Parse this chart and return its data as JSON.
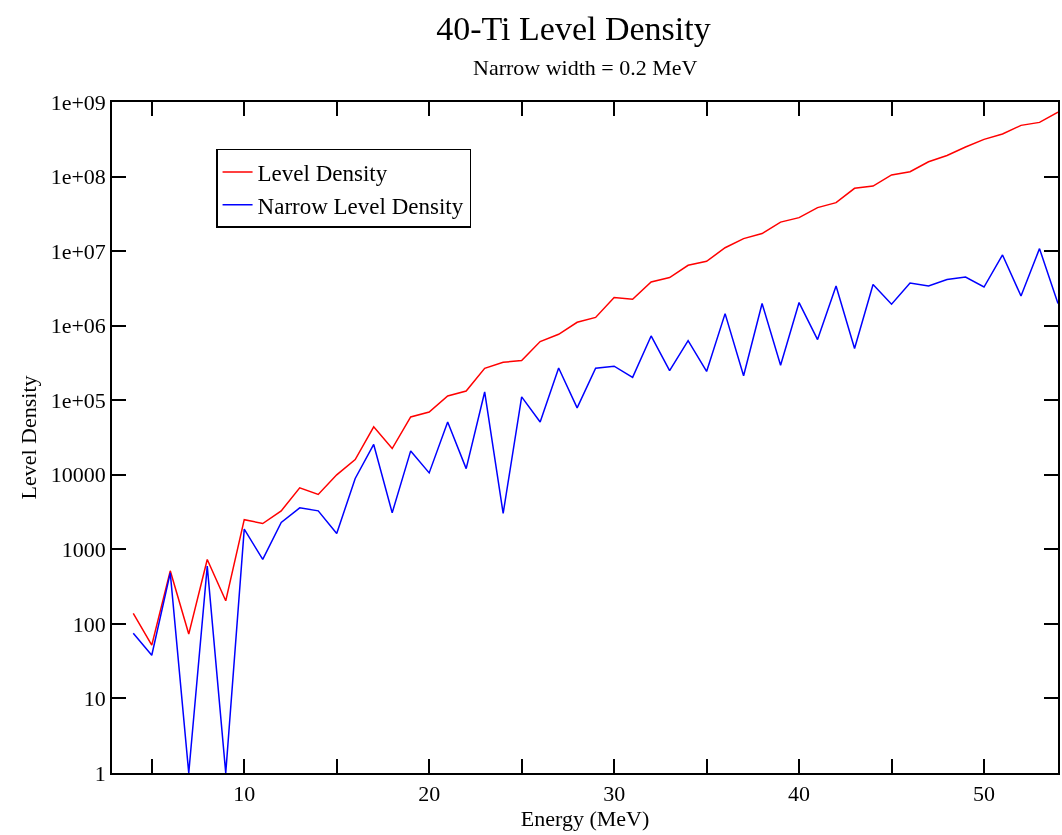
{
  "chart_data": {
    "type": "line",
    "title": "40-Ti Level Density",
    "subtitle": "Narrow width = 0.2 MeV",
    "xlabel": "Energy (MeV)",
    "ylabel": "Level Density",
    "x": [
      4,
      5,
      6,
      7,
      8,
      9,
      10,
      11,
      12,
      13,
      14,
      15,
      16,
      17,
      18,
      19,
      20,
      21,
      22,
      23,
      24,
      25,
      26,
      27,
      28,
      29,
      30,
      31,
      32,
      33,
      34,
      35,
      36,
      37,
      38,
      39,
      40,
      41,
      42,
      43,
      44,
      45,
      46,
      47,
      48,
      49,
      50,
      51,
      52,
      53,
      54
    ],
    "series": [
      {
        "name": "Level Density",
        "color": "#ff0000",
        "values": [
          138,
          52,
          515,
          73,
          730,
          204,
          2500,
          2220,
          3280,
          6680,
          5450,
          9980,
          16000,
          43900,
          22500,
          59700,
          69600,
          114000,
          133000,
          268000,
          323000,
          340000,
          612000,
          767000,
          1110000,
          1290000,
          2380000,
          2260000,
          3850000,
          4420000,
          6450000,
          7300000,
          11100000,
          14700000,
          17200000,
          24500000,
          28100000,
          38300000,
          44700000,
          69500000,
          74600000,
          105000000,
          116000000,
          158000000,
          192000000,
          249000000,
          315000000,
          372000000,
          486000000,
          533000000,
          732000000
        ]
      },
      {
        "name": "Narrow Level Density",
        "color": "#0000ff",
        "values": [
          75,
          38,
          484,
          1,
          596,
          1,
          1870,
          733,
          2290,
          3600,
          3280,
          1630,
          8920,
          25500,
          3090,
          20900,
          10600,
          51000,
          12100,
          129000,
          3030,
          111000,
          51000,
          271000,
          78900,
          268000,
          286000,
          203000,
          728000,
          250000,
          631000,
          243000,
          1450000,
          213000,
          1980000,
          294000,
          2040000,
          651000,
          3400000,
          493000,
          3560000,
          1940000,
          3740000,
          3400000,
          4150000,
          4500000,
          3300000,
          8870000,
          2500000,
          10800000,
          1980000
        ]
      }
    ],
    "log": "y",
    "xlim": [
      2.85,
      54
    ],
    "ylim": [
      1,
      1000000000
    ],
    "xticks": [
      {
        "value": 5,
        "label": null
      },
      10,
      {
        "value": 15,
        "label": null
      },
      20,
      {
        "value": 25,
        "label": null
      },
      30,
      {
        "value": 35,
        "label": null
      },
      40,
      {
        "value": 45,
        "label": null
      },
      50
    ],
    "yticks": [
      1,
      10,
      100,
      1000,
      10000,
      {
        "value": 100000,
        "label": "1e+05"
      },
      {
        "value": 1000000,
        "label": "1e+06"
      },
      {
        "value": 10000000,
        "label": "1e+07"
      },
      {
        "value": 100000000,
        "label": "1e+08"
      },
      {
        "value": 1000000000,
        "label": "1e+09"
      }
    ],
    "legend": "top left",
    "marker": "none",
    "line_style": "solid"
  }
}
